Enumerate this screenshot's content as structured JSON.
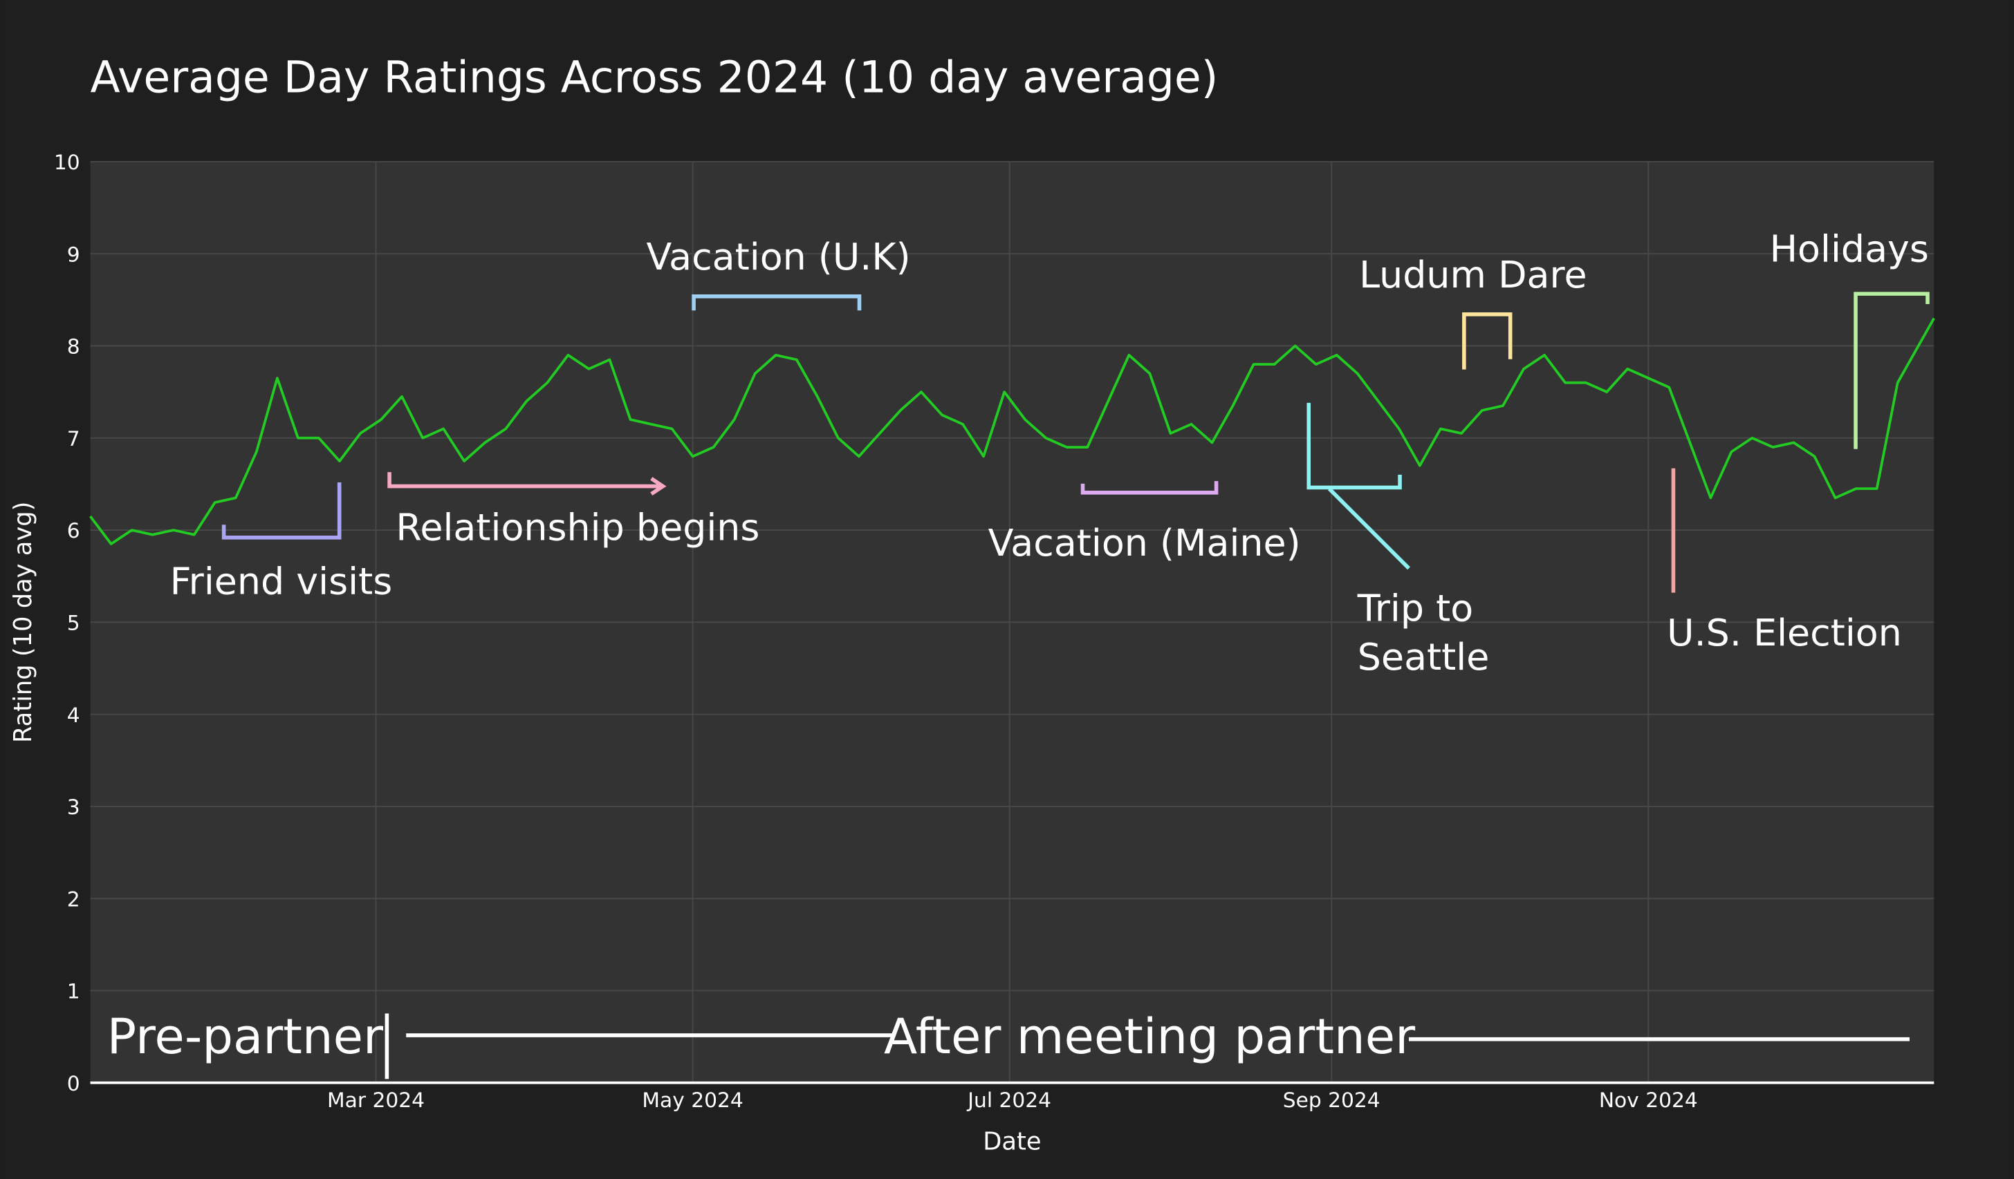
{
  "chart_data": {
    "type": "line",
    "title": "Average Day Ratings Across 2024 (10 day average)",
    "x_label": "Date",
    "y_label": "Rating (10 day avg)",
    "color": "#22cc22",
    "grid": true,
    "xlim": [
      "2024-01-06",
      "2024-12-26"
    ],
    "xticks": [
      {
        "value": "2024-03-01",
        "label": "Mar 2024"
      },
      {
        "value": "2024-05-01",
        "label": "May 2024"
      },
      {
        "value": "2024-07-01",
        "label": "Jul 2024"
      },
      {
        "value": "2024-09-01",
        "label": "Sep 2024"
      },
      {
        "value": "2024-11-01",
        "label": "Nov 2024"
      }
    ],
    "ylim": [
      0,
      10
    ],
    "yticks": [
      0,
      1,
      2,
      3,
      4,
      5,
      6,
      7,
      8,
      9,
      10
    ],
    "x": [
      "2024-01-06",
      "2024-01-10",
      "2024-01-14",
      "2024-01-18",
      "2024-01-22",
      "2024-01-26",
      "2024-01-30",
      "2024-02-03",
      "2024-02-07",
      "2024-02-11",
      "2024-02-15",
      "2024-02-19",
      "2024-02-23",
      "2024-02-27",
      "2024-03-02",
      "2024-03-06",
      "2024-03-10",
      "2024-03-14",
      "2024-03-18",
      "2024-03-22",
      "2024-03-26",
      "2024-03-30",
      "2024-04-03",
      "2024-04-07",
      "2024-04-11",
      "2024-04-15",
      "2024-04-19",
      "2024-04-23",
      "2024-04-27",
      "2024-05-01",
      "2024-05-05",
      "2024-05-09",
      "2024-05-13",
      "2024-05-17",
      "2024-05-21",
      "2024-05-25",
      "2024-05-29",
      "2024-06-02",
      "2024-06-06",
      "2024-06-10",
      "2024-06-14",
      "2024-06-18",
      "2024-06-22",
      "2024-06-26",
      "2024-06-30",
      "2024-07-04",
      "2024-07-08",
      "2024-07-12",
      "2024-07-16",
      "2024-07-20",
      "2024-07-24",
      "2024-07-28",
      "2024-08-01",
      "2024-08-05",
      "2024-08-09",
      "2024-08-13",
      "2024-08-17",
      "2024-08-21",
      "2024-08-25",
      "2024-08-29",
      "2024-09-02",
      "2024-09-06",
      "2024-09-10",
      "2024-09-14",
      "2024-09-18",
      "2024-09-22",
      "2024-09-26",
      "2024-09-30",
      "2024-10-04",
      "2024-10-08",
      "2024-10-12",
      "2024-10-16",
      "2024-10-20",
      "2024-10-24",
      "2024-10-28",
      "2024-11-01",
      "2024-11-05",
      "2024-11-09",
      "2024-11-13",
      "2024-11-17",
      "2024-11-21",
      "2024-11-25",
      "2024-11-29",
      "2024-12-03",
      "2024-12-07",
      "2024-12-11",
      "2024-12-15",
      "2024-12-19",
      "2024-12-23",
      "2024-12-26"
    ],
    "values": [
      6.15,
      5.85,
      6.0,
      5.95,
      6.0,
      5.95,
      6.3,
      6.35,
      6.85,
      7.65,
      7.0,
      7.0,
      6.75,
      7.05,
      7.2,
      7.45,
      7.0,
      7.1,
      6.75,
      6.95,
      7.1,
      7.4,
      7.6,
      7.9,
      7.75,
      7.85,
      7.2,
      7.15,
      7.1,
      6.8,
      6.9,
      7.2,
      7.7,
      7.9,
      7.85,
      7.45,
      7.0,
      6.8,
      7.05,
      7.3,
      7.5,
      7.25,
      7.15,
      6.8,
      7.5,
      7.2,
      7.0,
      6.9,
      6.9,
      7.4,
      7.9,
      7.7,
      7.05,
      7.15,
      6.95,
      7.35,
      7.8,
      7.8,
      8.0,
      7.8,
      7.9,
      7.7,
      7.4,
      7.1,
      6.7,
      7.1,
      7.05,
      7.3,
      7.35,
      7.75,
      7.9,
      7.6,
      7.6,
      7.5,
      7.75,
      7.65,
      7.55,
      6.95,
      6.35,
      6.85,
      7.0,
      6.9,
      6.95,
      6.8,
      6.35,
      6.45,
      6.45,
      7.6,
      8.0,
      8.3
    ],
    "annotations": [
      {
        "lines": [
          "Friend visits"
        ],
        "color": "#aaa4f5"
      },
      {
        "lines": [
          "Relationship begins"
        ],
        "color": "#f7a8c2"
      },
      {
        "lines": [
          "Vacation (U.K)"
        ],
        "color": "#9fd0f3"
      },
      {
        "lines": [
          "Vacation (Maine)"
        ],
        "color": "#dcaaf0"
      },
      {
        "lines": [
          "Trip to",
          "Seattle"
        ],
        "color": "#8ef0f0"
      },
      {
        "lines": [
          "Ludum Dare"
        ],
        "color": "#fde39c"
      },
      {
        "lines": [
          "U.S. Election"
        ],
        "color": "#f4a2a2"
      },
      {
        "lines": [
          "Holidays"
        ],
        "color": "#b8f0a2"
      },
      {
        "lines": [
          "Pre-partner"
        ],
        "color": "#ffffff"
      },
      {
        "lines": [
          "After meeting partner"
        ],
        "color": "#ffffff"
      }
    ]
  }
}
